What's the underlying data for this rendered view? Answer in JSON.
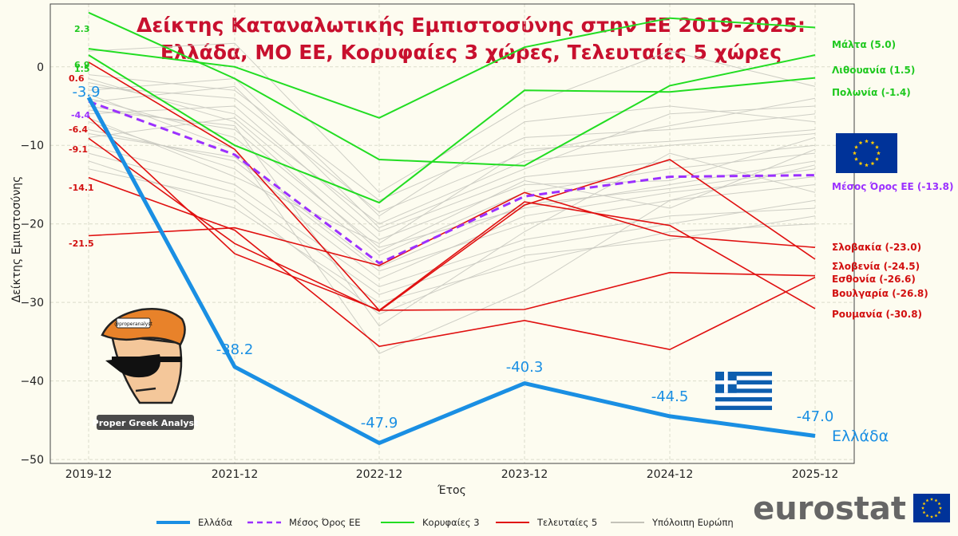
{
  "chart_data": {
    "type": "line",
    "title_lines": [
      "Δείκτης Καταναλωτικής Εμπιστοσύνης στην ΕΕ 2019-2025:",
      "Ελλάδα, ΜΟ ΕΕ, Κορυφαίες 3 χώρες, Τελευταίες 5 χώρες"
    ],
    "xlabel": "Έτος",
    "ylabel": "Δείκτης Εμπιστοσύνης",
    "categories": [
      "2019-12",
      "2021-12",
      "2022-12",
      "2023-12",
      "2024-12",
      "2025-12"
    ],
    "ylim": [
      -50.5,
      8
    ],
    "yticks": [
      0,
      -10,
      -20,
      -30,
      -40,
      -50
    ],
    "grid": true,
    "legend_position": "bottom",
    "legend": [
      {
        "label": "Ελλάδα",
        "style": "greece"
      },
      {
        "label": "Μέσος Όρος ΕΕ",
        "style": "eu"
      },
      {
        "label": "Κορυφαίες 3",
        "style": "top"
      },
      {
        "label": "Τελευταίες 5",
        "style": "bottom"
      },
      {
        "label": "Υπόλοιπη Ευρώπη",
        "style": "rest"
      }
    ],
    "greece": {
      "name": "Ελλάδα",
      "values": [
        -3.9,
        -38.2,
        -47.9,
        -40.3,
        -44.5,
        -47.0
      ],
      "labels": [
        "-3.9",
        "-38.2",
        "-47.9",
        "-40.3",
        "-44.5",
        "-47.0"
      ],
      "color": "#1a8fe3"
    },
    "eu_average": {
      "name": "Μέσος Όρος ΕΕ (-13.8)",
      "values": [
        -4.4,
        -11.2,
        -25.0,
        -16.5,
        -14.0,
        -13.8
      ],
      "color": "#9b30ff"
    },
    "top3": [
      {
        "name": "Μάλτα (5.0)",
        "values": [
          2.3,
          0.0,
          -6.5,
          2.5,
          6.2,
          5.0
        ],
        "start_label": "2.3"
      },
      {
        "name": "Λιθουανία (1.5)",
        "values": [
          6.9,
          -1.5,
          -11.8,
          -12.6,
          -2.4,
          1.5
        ],
        "start_label": "6.9"
      },
      {
        "name": "Πολωνία (-1.4)",
        "values": [
          1.5,
          -10.0,
          -17.3,
          -3.0,
          -3.2,
          -1.4
        ],
        "start_label": "1.5"
      }
    ],
    "top_color": "#22dd22",
    "bottom5": [
      {
        "name": "Σλοβακία (-23.0)",
        "values": [
          -21.5,
          -20.5,
          -25.3,
          -16.0,
          -21.5,
          -23.0
        ],
        "start_label": "-21.5"
      },
      {
        "name": "Σλοβενία (-24.5)",
        "values": [
          -9.1,
          -22.5,
          -31.1,
          -17.6,
          -11.8,
          -24.5
        ],
        "start_label": "-9.1"
      },
      {
        "name": "Εσθονία (-26.6)",
        "values": [
          -6.4,
          -23.8,
          -31.0,
          -30.9,
          -26.2,
          -26.6
        ],
        "start_label": "-6.4"
      },
      {
        "name": "Βουλγαρία (-26.8)",
        "values": [
          -14.1,
          -20.8,
          -35.6,
          -32.3,
          -36.0,
          -26.8
        ],
        "start_label": "-14.1"
      },
      {
        "name": "Ρουμανία (-30.8)",
        "values": [
          0.6,
          -10.5,
          -31.0,
          -17.2,
          -20.2,
          -30.8
        ],
        "start_label": "0.6"
      }
    ],
    "bottom_color": "#e01010",
    "rest_color": "#c9c9c0",
    "rest": [
      [
        -2.0,
        -6.0,
        -20.0,
        -12.0,
        -10.0,
        -8.5
      ],
      [
        -5.0,
        -8.0,
        -23.0,
        -18.0,
        -15.0,
        -12.0
      ],
      [
        -8.0,
        -12.0,
        -26.0,
        -20.0,
        -17.0,
        -15.0
      ],
      [
        -3.0,
        -1.5,
        -19.0,
        -7.0,
        -5.0,
        -7.0
      ],
      [
        -10.0,
        -15.0,
        -28.0,
        -22.0,
        -19.0,
        -18.0
      ],
      [
        -6.0,
        -5.0,
        -21.0,
        -14.0,
        -12.0,
        -10.0
      ],
      [
        -12.0,
        -18.0,
        -30.0,
        -25.0,
        -21.0,
        -20.0
      ],
      [
        -1.0,
        -3.0,
        -17.0,
        -9.0,
        -8.0,
        -6.0
      ],
      [
        -4.0,
        -9.0,
        -24.0,
        -16.0,
        -13.0,
        -11.0
      ],
      [
        -7.0,
        -13.0,
        -27.0,
        -19.0,
        -16.0,
        -14.0
      ],
      [
        -9.0,
        -6.5,
        -22.0,
        -15.0,
        -14.5,
        -9.0
      ],
      [
        -11.0,
        -16.0,
        -29.0,
        -23.0,
        -20.0,
        -17.0
      ],
      [
        -2.5,
        -4.0,
        -18.5,
        -11.0,
        -7.5,
        -4.0
      ],
      [
        -5.5,
        -7.5,
        -33.0,
        -21.0,
        -11.0,
        -16.0
      ],
      [
        -3.5,
        -10.5,
        -36.5,
        -28.5,
        -17.0,
        -12.5
      ],
      [
        -6.5,
        -14.0,
        -22.5,
        -10.5,
        -9.5,
        -8.0
      ],
      [
        -8.5,
        -11.5,
        -25.5,
        -17.5,
        -15.5,
        -13.0
      ],
      [
        -4.5,
        -2.5,
        -20.5,
        -13.0,
        -6.0,
        -5.0
      ],
      [
        -1.5,
        -7.0,
        -23.5,
        -14.5,
        -18.0,
        -10.5
      ],
      [
        -13.0,
        -17.0,
        -31.5,
        -24.0,
        -22.0,
        -19.0
      ],
      [
        2.0,
        3.0,
        -16.0,
        -5.0,
        2.0,
        -2.5
      ]
    ]
  },
  "watermark": {
    "text": "Proper Greek Analyst",
    "badge": "@properanalyst"
  },
  "source_logo": {
    "text": "eurostat"
  },
  "colors": {
    "background": "#fdfcf0",
    "title": "#c8102e",
    "greece": "#1a8fe3",
    "eu": "#9b30ff",
    "top": "#22dd22",
    "bottom": "#e01010",
    "rest": "#c9c9c0",
    "eu_flag": "#003399",
    "eu_stars": "#ffcc00",
    "gr_flag": "#0d5eaf"
  }
}
